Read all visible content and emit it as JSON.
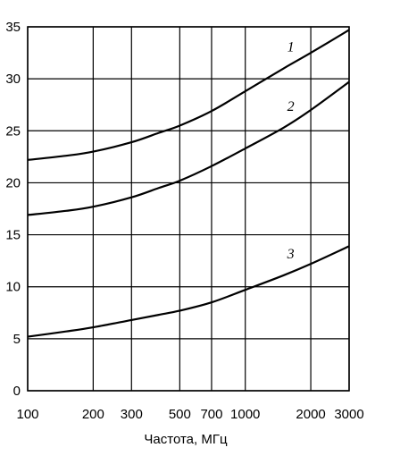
{
  "chart_data": {
    "type": "line",
    "title": "",
    "xlabel": "Частота, МГц",
    "ylabel": "",
    "xscale": "log",
    "xlim": [
      100,
      3000
    ],
    "ylim": [
      0,
      35
    ],
    "grid": true,
    "x_ticks": [
      100,
      200,
      300,
      500,
      700,
      1000,
      2000,
      3000
    ],
    "x_tick_labels": [
      "100",
      "200",
      "300",
      "500",
      "700",
      "1000",
      "2000",
      "3000"
    ],
    "y_ticks": [
      0,
      5,
      10,
      15,
      20,
      25,
      30,
      35
    ],
    "y_tick_labels": [
      "0",
      "5",
      "10",
      "15",
      "20",
      "25",
      "30",
      "35"
    ],
    "series": [
      {
        "name": "1",
        "x": [
          100,
          150,
          200,
          300,
          400,
          500,
          700,
          1000,
          1500,
          2000,
          3000
        ],
        "values": [
          22.2,
          22.6,
          23.0,
          23.9,
          24.8,
          25.5,
          26.9,
          28.8,
          31.0,
          32.5,
          34.7
        ]
      },
      {
        "name": "2",
        "x": [
          100,
          150,
          200,
          300,
          400,
          500,
          700,
          1000,
          1500,
          2000,
          3000
        ],
        "values": [
          16.9,
          17.3,
          17.7,
          18.6,
          19.5,
          20.2,
          21.6,
          23.3,
          25.3,
          27.0,
          29.7
        ]
      },
      {
        "name": "3",
        "x": [
          100,
          150,
          200,
          300,
          400,
          500,
          700,
          1000,
          1500,
          2000,
          3000
        ],
        "values": [
          5.2,
          5.7,
          6.1,
          6.8,
          7.3,
          7.7,
          8.5,
          9.7,
          11.1,
          12.2,
          13.9
        ]
      }
    ]
  }
}
